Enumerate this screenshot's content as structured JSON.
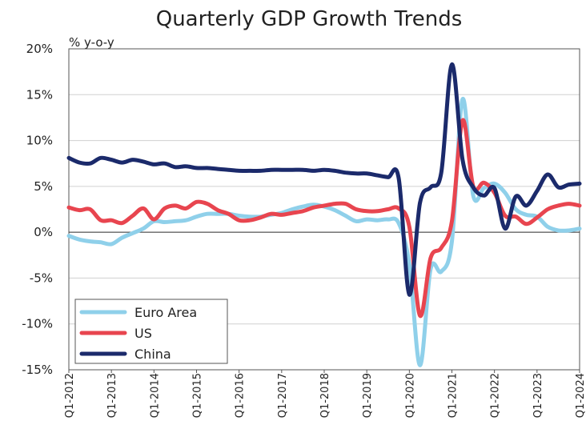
{
  "chart_data": {
    "type": "line",
    "title": "Quarterly GDP Growth Trends",
    "unit_label": "% y-o-y",
    "xlabel": "",
    "ylabel": "",
    "ylim": [
      -15,
      20
    ],
    "y_ticks": [
      20,
      15,
      10,
      5,
      0,
      -5,
      -10,
      -15
    ],
    "y_tick_labels": [
      "20%",
      "15%",
      "10%",
      "5%",
      "0%",
      "-5%",
      "-10%",
      "-15%"
    ],
    "x_tick_labels": [
      "Q1-2012",
      "Q1-2013",
      "Q1-2014",
      "Q1-2015",
      "Q1-2016",
      "Q1-2017",
      "Q1-2018",
      "Q1-2019",
      "Q1-2020",
      "Q1-2021",
      "Q1-2022",
      "Q1-2023",
      "Q1-2024"
    ],
    "grid": true,
    "legend_position": "bottom-left",
    "x_range": [
      2012.0,
      2024.0
    ],
    "series": [
      {
        "name": "Euro Area",
        "color": "#8fd0ea",
        "points": [
          [
            2012.0,
            -0.4
          ],
          [
            2012.25,
            -0.8
          ],
          [
            2012.5,
            -1.0
          ],
          [
            2012.75,
            -1.1
          ],
          [
            2013.0,
            -1.3
          ],
          [
            2013.25,
            -0.6
          ],
          [
            2013.5,
            -0.1
          ],
          [
            2013.75,
            0.4
          ],
          [
            2014.0,
            1.2
          ],
          [
            2014.25,
            1.1
          ],
          [
            2014.5,
            1.2
          ],
          [
            2014.75,
            1.3
          ],
          [
            2015.0,
            1.7
          ],
          [
            2015.25,
            2.0
          ],
          [
            2015.5,
            2.0
          ],
          [
            2015.75,
            2.0
          ],
          [
            2016.0,
            1.8
          ],
          [
            2016.25,
            1.7
          ],
          [
            2016.5,
            1.7
          ],
          [
            2016.75,
            1.9
          ],
          [
            2017.0,
            2.1
          ],
          [
            2017.25,
            2.5
          ],
          [
            2017.5,
            2.8
          ],
          [
            2017.75,
            3.0
          ],
          [
            2018.0,
            2.8
          ],
          [
            2018.25,
            2.4
          ],
          [
            2018.5,
            1.8
          ],
          [
            2018.75,
            1.2
          ],
          [
            2019.0,
            1.4
          ],
          [
            2019.25,
            1.3
          ],
          [
            2019.5,
            1.4
          ],
          [
            2019.75,
            1.0
          ],
          [
            2020.0,
            -3.5
          ],
          [
            2020.25,
            -14.5
          ],
          [
            2020.5,
            -4.0
          ],
          [
            2020.75,
            -4.3
          ],
          [
            2021.0,
            -1.0
          ],
          [
            2021.25,
            14.5
          ],
          [
            2021.5,
            4.0
          ],
          [
            2021.75,
            4.8
          ],
          [
            2022.0,
            5.3
          ],
          [
            2022.25,
            4.3
          ],
          [
            2022.5,
            2.5
          ],
          [
            2022.75,
            1.9
          ],
          [
            2023.0,
            1.7
          ],
          [
            2023.25,
            0.6
          ],
          [
            2023.5,
            0.2
          ],
          [
            2023.75,
            0.2
          ],
          [
            2024.0,
            0.4
          ]
        ]
      },
      {
        "name": "US",
        "color": "#e8454f",
        "points": [
          [
            2012.0,
            2.7
          ],
          [
            2012.25,
            2.4
          ],
          [
            2012.5,
            2.5
          ],
          [
            2012.75,
            1.3
          ],
          [
            2013.0,
            1.3
          ],
          [
            2013.25,
            1.0
          ],
          [
            2013.5,
            1.8
          ],
          [
            2013.75,
            2.6
          ],
          [
            2014.0,
            1.4
          ],
          [
            2014.25,
            2.6
          ],
          [
            2014.5,
            2.9
          ],
          [
            2014.75,
            2.6
          ],
          [
            2015.0,
            3.3
          ],
          [
            2015.25,
            3.1
          ],
          [
            2015.5,
            2.4
          ],
          [
            2015.75,
            2.0
          ],
          [
            2016.0,
            1.3
          ],
          [
            2016.25,
            1.3
          ],
          [
            2016.5,
            1.6
          ],
          [
            2016.75,
            2.0
          ],
          [
            2017.0,
            1.9
          ],
          [
            2017.25,
            2.1
          ],
          [
            2017.5,
            2.3
          ],
          [
            2017.75,
            2.7
          ],
          [
            2018.0,
            2.9
          ],
          [
            2018.25,
            3.1
          ],
          [
            2018.5,
            3.1
          ],
          [
            2018.75,
            2.5
          ],
          [
            2019.0,
            2.3
          ],
          [
            2019.25,
            2.3
          ],
          [
            2019.5,
            2.5
          ],
          [
            2019.75,
            2.6
          ],
          [
            2020.0,
            0.6
          ],
          [
            2020.25,
            -9.1
          ],
          [
            2020.5,
            -2.8
          ],
          [
            2020.75,
            -1.7
          ],
          [
            2021.0,
            1.2
          ],
          [
            2021.25,
            12.2
          ],
          [
            2021.5,
            5.0
          ],
          [
            2021.75,
            5.4
          ],
          [
            2022.0,
            4.3
          ],
          [
            2022.25,
            1.8
          ],
          [
            2022.5,
            1.7
          ],
          [
            2022.75,
            0.9
          ],
          [
            2023.0,
            1.6
          ],
          [
            2023.25,
            2.5
          ],
          [
            2023.5,
            2.9
          ],
          [
            2023.75,
            3.1
          ],
          [
            2024.0,
            2.9
          ]
        ]
      },
      {
        "name": "China",
        "color": "#1b2a6b",
        "points": [
          [
            2012.0,
            8.1
          ],
          [
            2012.25,
            7.6
          ],
          [
            2012.5,
            7.5
          ],
          [
            2012.75,
            8.1
          ],
          [
            2013.0,
            7.9
          ],
          [
            2013.25,
            7.6
          ],
          [
            2013.5,
            7.9
          ],
          [
            2013.75,
            7.7
          ],
          [
            2014.0,
            7.4
          ],
          [
            2014.25,
            7.5
          ],
          [
            2014.5,
            7.1
          ],
          [
            2014.75,
            7.2
          ],
          [
            2015.0,
            7.0
          ],
          [
            2015.25,
            7.0
          ],
          [
            2015.5,
            6.9
          ],
          [
            2015.75,
            6.8
          ],
          [
            2016.0,
            6.7
          ],
          [
            2016.25,
            6.7
          ],
          [
            2016.5,
            6.7
          ],
          [
            2016.75,
            6.8
          ],
          [
            2017.0,
            6.8
          ],
          [
            2017.25,
            6.8
          ],
          [
            2017.5,
            6.8
          ],
          [
            2017.75,
            6.7
          ],
          [
            2018.0,
            6.8
          ],
          [
            2018.25,
            6.7
          ],
          [
            2018.5,
            6.5
          ],
          [
            2018.75,
            6.4
          ],
          [
            2019.0,
            6.4
          ],
          [
            2019.25,
            6.2
          ],
          [
            2019.5,
            6.0
          ],
          [
            2019.75,
            5.9
          ],
          [
            2020.0,
            -6.8
          ],
          [
            2020.25,
            3.2
          ],
          [
            2020.5,
            4.9
          ],
          [
            2020.75,
            6.5
          ],
          [
            2021.0,
            18.3
          ],
          [
            2021.25,
            7.9
          ],
          [
            2021.5,
            4.9
          ],
          [
            2021.75,
            4.0
          ],
          [
            2022.0,
            4.8
          ],
          [
            2022.25,
            0.4
          ],
          [
            2022.5,
            3.9
          ],
          [
            2022.75,
            2.9
          ],
          [
            2023.0,
            4.5
          ],
          [
            2023.25,
            6.3
          ],
          [
            2023.5,
            4.9
          ],
          [
            2023.75,
            5.2
          ],
          [
            2024.0,
            5.3
          ]
        ]
      }
    ]
  }
}
